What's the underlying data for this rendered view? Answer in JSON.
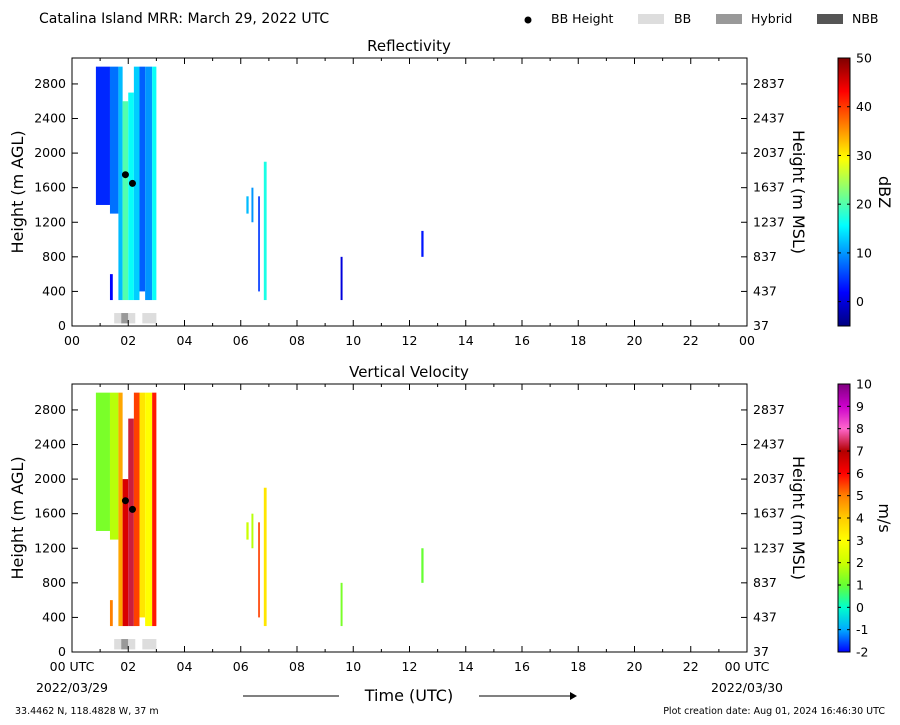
{
  "header": {
    "title": "Catalina Island MRR:  March 29, 2022 UTC",
    "legend": [
      {
        "label": "BB Height",
        "kind": "dot",
        "color": "#000000"
      },
      {
        "label": "BB",
        "kind": "box",
        "color": "#dddddd"
      },
      {
        "label": "Hybrid",
        "kind": "box",
        "color": "#999999"
      },
      {
        "label": "NBB",
        "kind": "box",
        "color": "#555555"
      }
    ]
  },
  "footer": {
    "coords": "33.4462 N, 118.4828 W, 37 m",
    "created": "Plot creation date: Aug 01, 2024 16:46:30 UTC",
    "xlabel": "Time (UTC)",
    "start_tick": "00 UTC",
    "start_date": "2022/03/29",
    "end_tick": "00 UTC",
    "end_date": "2022/03/30"
  },
  "colors": {
    "reflectivity_scale": [
      "#00007f",
      "#0000ff",
      "#007fff",
      "#00ffff",
      "#7fff7f",
      "#ffff00",
      "#ff7f00",
      "#ff0000",
      "#7f0000"
    ],
    "velocity_scale": [
      "#0000ff",
      "#00aaff",
      "#00ffcc",
      "#66ff33",
      "#ccff00",
      "#ffff00",
      "#ffcc00",
      "#ff8000",
      "#ff0000",
      "#b30000",
      "#ff66cc",
      "#cc00cc",
      "#800080"
    ]
  },
  "chart_data": [
    {
      "type": "heatmap",
      "title": "Reflectivity",
      "xlabel": "",
      "ylabel": "Height (m AGL)",
      "ylabel_right": "Height (m MSL)",
      "colorbar_label": "dBZ",
      "xlim": [
        0,
        24
      ],
      "ylim": [
        0,
        3100
      ],
      "x_ticks": [
        "00",
        "02",
        "04",
        "06",
        "08",
        "10",
        "12",
        "14",
        "16",
        "18",
        "20",
        "22",
        "00"
      ],
      "y_ticks_left": [
        0,
        400,
        800,
        1200,
        1600,
        2000,
        2400,
        2800
      ],
      "y_ticks_right": [
        "37",
        "437",
        "837",
        "1237",
        "1637",
        "2037",
        "2437",
        "2837"
      ],
      "colorbar_range": [
        -5,
        50
      ],
      "colorbar_ticks": [
        0,
        10,
        20,
        30,
        40,
        50
      ],
      "bb_height_points": [
        {
          "x": 1.9,
          "y": 1750
        },
        {
          "x": 2.15,
          "y": 1650
        }
      ],
      "bb_type_segments": [
        {
          "x0": 1.5,
          "x1": 1.75,
          "type": "BB"
        },
        {
          "x0": 1.75,
          "x1": 2.0,
          "type": "Hybrid"
        },
        {
          "x0": 2.0,
          "x1": 2.25,
          "type": "BB"
        },
        {
          "x0": 2.5,
          "x1": 3.0,
          "type": "BB"
        }
      ],
      "echo_cells": [
        {
          "x0": 0.85,
          "x1": 1.35,
          "y0": 1400,
          "y1": 3000,
          "value": 4
        },
        {
          "x0": 1.35,
          "x1": 1.65,
          "y0": 1300,
          "y1": 3000,
          "value": 8
        },
        {
          "x0": 1.65,
          "x1": 1.8,
          "y0": 300,
          "y1": 3000,
          "value": 12
        },
        {
          "x0": 1.8,
          "x1": 2.0,
          "y0": 300,
          "y1": 2600,
          "value": 20
        },
        {
          "x0": 2.0,
          "x1": 2.2,
          "y0": 300,
          "y1": 2700,
          "value": 16
        },
        {
          "x0": 2.2,
          "x1": 2.4,
          "y0": 300,
          "y1": 3000,
          "value": 13
        },
        {
          "x0": 2.4,
          "x1": 2.6,
          "y0": 400,
          "y1": 3000,
          "value": 7
        },
        {
          "x0": 2.6,
          "x1": 2.85,
          "y0": 300,
          "y1": 3000,
          "value": 10
        },
        {
          "x0": 2.85,
          "x1": 3.0,
          "y0": 300,
          "y1": 3000,
          "value": 16
        },
        {
          "x0": 1.35,
          "x1": 1.45,
          "y0": 300,
          "y1": 600,
          "value": 2
        },
        {
          "x0": 6.2,
          "x1": 6.28,
          "y0": 1300,
          "y1": 1500,
          "value": 12
        },
        {
          "x0": 6.38,
          "x1": 6.45,
          "y0": 1200,
          "y1": 1600,
          "value": 10
        },
        {
          "x0": 6.62,
          "x1": 6.68,
          "y0": 400,
          "y1": 1500,
          "value": 5
        },
        {
          "x0": 6.82,
          "x1": 6.92,
          "y0": 300,
          "y1": 1900,
          "value": 17
        },
        {
          "x0": 9.55,
          "x1": 9.62,
          "y0": 300,
          "y1": 800,
          "value": 0
        },
        {
          "x0": 12.42,
          "x1": 12.5,
          "y0": 800,
          "y1": 1100,
          "value": 3
        }
      ]
    },
    {
      "type": "heatmap",
      "title": "Vertical Velocity",
      "xlabel": "Time (UTC)",
      "ylabel": "Height (m AGL)",
      "ylabel_right": "Height (m MSL)",
      "colorbar_label": "m/s",
      "xlim": [
        0,
        24
      ],
      "ylim": [
        0,
        3100
      ],
      "x_ticks": [
        "00 UTC",
        "02",
        "04",
        "06",
        "08",
        "10",
        "12",
        "14",
        "16",
        "18",
        "20",
        "22",
        "00 UTC"
      ],
      "y_ticks_left": [
        0,
        400,
        800,
        1200,
        1600,
        2000,
        2400,
        2800
      ],
      "y_ticks_right": [
        "37",
        "437",
        "837",
        "1237",
        "1637",
        "2037",
        "2437",
        "2837"
      ],
      "colorbar_range": [
        -2,
        10
      ],
      "colorbar_ticks": [
        -2,
        -1,
        0,
        1,
        2,
        3,
        4,
        5,
        6,
        7,
        8,
        9,
        10
      ],
      "bb_height_points": [
        {
          "x": 1.9,
          "y": 1750
        },
        {
          "x": 2.15,
          "y": 1650
        }
      ],
      "bb_type_segments": [
        {
          "x0": 1.5,
          "x1": 1.75,
          "type": "BB"
        },
        {
          "x0": 1.75,
          "x1": 2.0,
          "type": "Hybrid"
        },
        {
          "x0": 2.0,
          "x1": 2.25,
          "type": "BB"
        },
        {
          "x0": 2.5,
          "x1": 3.0,
          "type": "BB"
        }
      ],
      "echo_cells": [
        {
          "x0": 0.85,
          "x1": 1.35,
          "y0": 1400,
          "y1": 3000,
          "value": 1.2
        },
        {
          "x0": 1.35,
          "x1": 1.65,
          "y0": 1300,
          "y1": 3000,
          "value": 1.8
        },
        {
          "x0": 1.65,
          "x1": 1.8,
          "y0": 300,
          "y1": 3000,
          "value": 4.5
        },
        {
          "x0": 1.8,
          "x1": 2.0,
          "y0": 300,
          "y1": 2000,
          "value": 6.5
        },
        {
          "x0": 2.0,
          "x1": 2.2,
          "y0": 300,
          "y1": 2700,
          "value": 7.3
        },
        {
          "x0": 2.2,
          "x1": 2.4,
          "y0": 300,
          "y1": 3000,
          "value": 5.5
        },
        {
          "x0": 2.4,
          "x1": 2.6,
          "y0": 400,
          "y1": 3000,
          "value": 3.5
        },
        {
          "x0": 2.6,
          "x1": 2.85,
          "y0": 300,
          "y1": 3000,
          "value": 3.0
        },
        {
          "x0": 2.85,
          "x1": 3.0,
          "y0": 300,
          "y1": 3000,
          "value": 5.8
        },
        {
          "x0": 1.35,
          "x1": 1.45,
          "y0": 300,
          "y1": 600,
          "value": 5.0
        },
        {
          "x0": 6.2,
          "x1": 6.28,
          "y0": 1300,
          "y1": 1500,
          "value": 2.0
        },
        {
          "x0": 6.38,
          "x1": 6.45,
          "y0": 1200,
          "y1": 1600,
          "value": 1.8
        },
        {
          "x0": 6.62,
          "x1": 6.68,
          "y0": 400,
          "y1": 1500,
          "value": 5.5
        },
        {
          "x0": 6.82,
          "x1": 6.92,
          "y0": 300,
          "y1": 1900,
          "value": 3.5
        },
        {
          "x0": 9.55,
          "x1": 9.62,
          "y0": 300,
          "y1": 800,
          "value": 1.2
        },
        {
          "x0": 12.42,
          "x1": 12.5,
          "y0": 800,
          "y1": 1200,
          "value": 1.0
        }
      ]
    }
  ]
}
